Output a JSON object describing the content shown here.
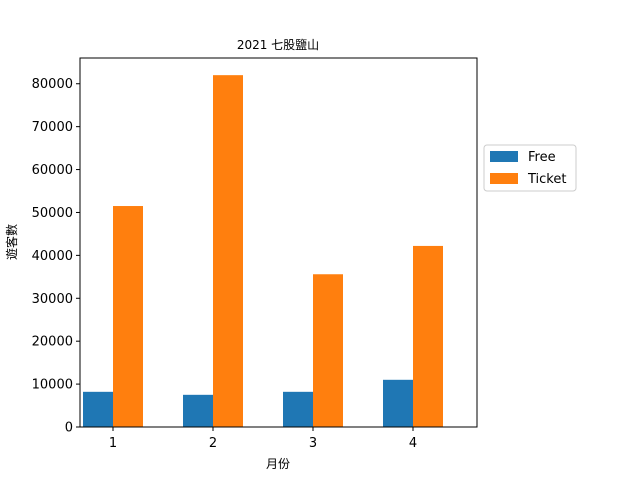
{
  "chart_data": {
    "type": "bar",
    "title": "2021 七股鹽山",
    "xlabel": "月份",
    "ylabel": "遊客數",
    "categories": [
      "1",
      "2",
      "3",
      "4"
    ],
    "series": [
      {
        "name": "Free",
        "color": "#1f77b4",
        "values": [
          8200,
          7500,
          8200,
          11000
        ]
      },
      {
        "name": "Ticket",
        "color": "#ff7f0e",
        "values": [
          51500,
          82000,
          35600,
          42200
        ]
      }
    ],
    "ylim": [
      0,
      86000
    ],
    "yticks": [
      0,
      10000,
      20000,
      30000,
      40000,
      50000,
      60000,
      70000,
      80000
    ],
    "legend_position": "right",
    "grid": false
  }
}
